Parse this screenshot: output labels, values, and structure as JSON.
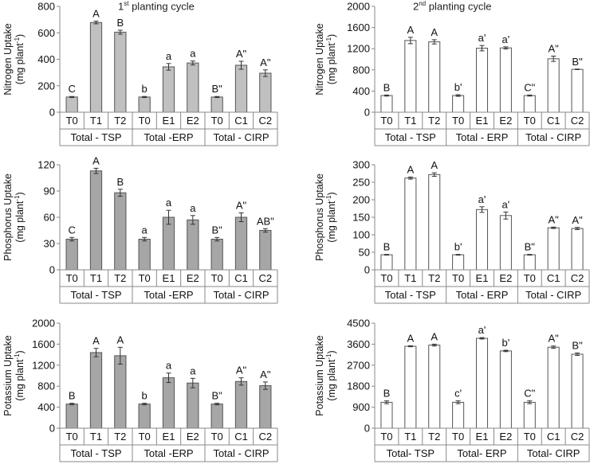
{
  "header": {
    "left_title_num": "1",
    "left_title_sup": "st",
    "left_title_rest": " planting cycle",
    "right_title_num": "2",
    "right_title_sup": "nd",
    "right_title_rest": " planting cycle"
  },
  "chart_data": [
    {
      "id": "n1",
      "type": "bar",
      "nutrient": "Nitrogen",
      "cycle": "1st planting cycle",
      "ylabel_line1": "Nitrogen Uptake",
      "ylabel_line2": "(mg plant",
      "ylabel_sup": "-1",
      "ylabel_close": ")",
      "ylim": [
        0,
        800
      ],
      "yticks": [
        0,
        200,
        400,
        600,
        800
      ],
      "categories": [
        "T0",
        "T1",
        "T2",
        "T0",
        "E1",
        "E2",
        "T0",
        "C1",
        "C2"
      ],
      "groups": [
        "Total - TSP",
        "Total -ERP",
        "Total - CIRP"
      ],
      "values": [
        115,
        678,
        605,
        115,
        343,
        372,
        115,
        355,
        295
      ],
      "errors": [
        4,
        10,
        15,
        4,
        25,
        15,
        4,
        30,
        25
      ],
      "letters": [
        "C",
        "A",
        "B",
        "b",
        "a",
        "a",
        "B\"",
        "A\"",
        "A\""
      ],
      "fill": "#c0c0c0"
    },
    {
      "id": "n2",
      "type": "bar",
      "nutrient": "Nitrogen",
      "cycle": "2nd planting cycle",
      "ylabel_line1": "Nitrogen Uptake",
      "ylabel_line2": "(mg plant",
      "ylabel_sup": "-1",
      "ylabel_close": ")",
      "ylim": [
        0,
        2000
      ],
      "yticks": [
        0,
        400,
        800,
        1200,
        1600,
        2000
      ],
      "categories": [
        "T0",
        "T1",
        "T2",
        "T0",
        "E1",
        "E2",
        "T0",
        "C1",
        "C2"
      ],
      "groups": [
        "Total  - TSP",
        "Total - ERP",
        "Total - CIRP"
      ],
      "values": [
        315,
        1355,
        1330,
        315,
        1210,
        1215,
        315,
        1010,
        810
      ],
      "errors": [
        10,
        60,
        40,
        15,
        50,
        20,
        10,
        50,
        5
      ],
      "letters": [
        "B",
        "A",
        "A",
        "b'",
        "a'",
        "a'",
        "C\"",
        "A\"",
        "B\""
      ],
      "fill": "#ffffff"
    },
    {
      "id": "p1",
      "type": "bar",
      "nutrient": "Phosphorus",
      "cycle": "1st planting cycle",
      "ylabel_line1": "Phosphorus Uptake",
      "ylabel_line2": "(mg plant",
      "ylabel_sup": "-1",
      "ylabel_close": ")",
      "ylim": [
        0,
        120
      ],
      "yticks": [
        0,
        30,
        60,
        90,
        120
      ],
      "categories": [
        "T0",
        "T1",
        "T2",
        "T0",
        "E1",
        "E2",
        "T0",
        "C1",
        "C2"
      ],
      "groups": [
        "Total - TSP",
        "Total -ERP",
        "Total - CIRP"
      ],
      "values": [
        35,
        113,
        88,
        35,
        60,
        57,
        35,
        60,
        45
      ],
      "errors": [
        2,
        3,
        4,
        2,
        8,
        5,
        2,
        5,
        2
      ],
      "letters": [
        "C",
        "A",
        "B",
        "a",
        "a",
        "a",
        "B\"",
        "A\"",
        "AB\""
      ],
      "fill": "#a6a6a6"
    },
    {
      "id": "p2",
      "type": "bar",
      "nutrient": "Phosphorus",
      "cycle": "2nd planting cycle",
      "ylabel_line1": "Phosphorus Uptake",
      "ylabel_line2": "(mg plant",
      "ylabel_sup": "-1",
      "ylabel_close": ")",
      "ylim": [
        0,
        300
      ],
      "yticks": [
        0,
        50,
        100,
        150,
        200,
        250,
        300
      ],
      "categories": [
        "T0",
        "T1",
        "T2",
        "T0",
        "E1",
        "E2",
        "T0",
        "C1",
        "C2"
      ],
      "groups": [
        "Total - TSP",
        "Total - ERP",
        "Total - CIRP"
      ],
      "values": [
        43,
        262,
        272,
        43,
        172,
        155,
        43,
        120,
        118
      ],
      "errors": [
        1,
        3,
        5,
        1,
        8,
        10,
        1,
        2,
        3
      ],
      "letters": [
        "B",
        "A",
        "A",
        "b'",
        "a'",
        "a'",
        "B\"",
        "A\"",
        "A\""
      ],
      "fill": "#ffffff"
    },
    {
      "id": "k1",
      "type": "bar",
      "nutrient": "Potassium",
      "cycle": "1st planting cycle",
      "ylabel_line1": "Potassium Uptake",
      "ylabel_line2": "(mg plant",
      "ylabel_sup": "-1",
      "ylabel_close": ")",
      "ylim": [
        0,
        2000
      ],
      "yticks": [
        0,
        400,
        800,
        1200,
        1600,
        2000
      ],
      "categories": [
        "T0",
        "T1",
        "T2",
        "T0",
        "E1",
        "E2",
        "T0",
        "C1",
        "C2"
      ],
      "groups": [
        "Total - TSP",
        "Total -ERP",
        "Total - CIRP"
      ],
      "values": [
        460,
        1440,
        1380,
        460,
        960,
        860,
        460,
        890,
        810
      ],
      "errors": [
        15,
        80,
        160,
        15,
        90,
        90,
        15,
        70,
        70
      ],
      "letters": [
        "B",
        "A",
        "A",
        "b",
        "a",
        "a",
        "B\"",
        "A\"",
        "A\""
      ],
      "fill": "#a6a6a6"
    },
    {
      "id": "k2",
      "type": "bar",
      "nutrient": "Potassium",
      "cycle": "2nd planting cycle",
      "ylabel_line1": "Potassium Uptake",
      "ylabel_line2": "(mg plant",
      "ylabel_sup": "-1",
      "ylabel_close": ")",
      "ylim": [
        0,
        4500
      ],
      "yticks": [
        0,
        900,
        1800,
        2700,
        3600,
        4500
      ],
      "categories": [
        "T0",
        "T1",
        "T2",
        "T0",
        "E1",
        "E2",
        "T0",
        "C1",
        "C2"
      ],
      "groups": [
        "Total- TSP",
        "Total- ERP",
        "Total- CIRP"
      ],
      "values": [
        1110,
        3510,
        3560,
        1110,
        3850,
        3310,
        1110,
        3470,
        3170
      ],
      "errors": [
        60,
        20,
        40,
        60,
        30,
        30,
        60,
        50,
        50
      ],
      "letters": [
        "B",
        "A",
        "A",
        "c'",
        "a'",
        "b'",
        "C\"",
        "A\"",
        "B\""
      ],
      "fill": "#ffffff"
    }
  ]
}
